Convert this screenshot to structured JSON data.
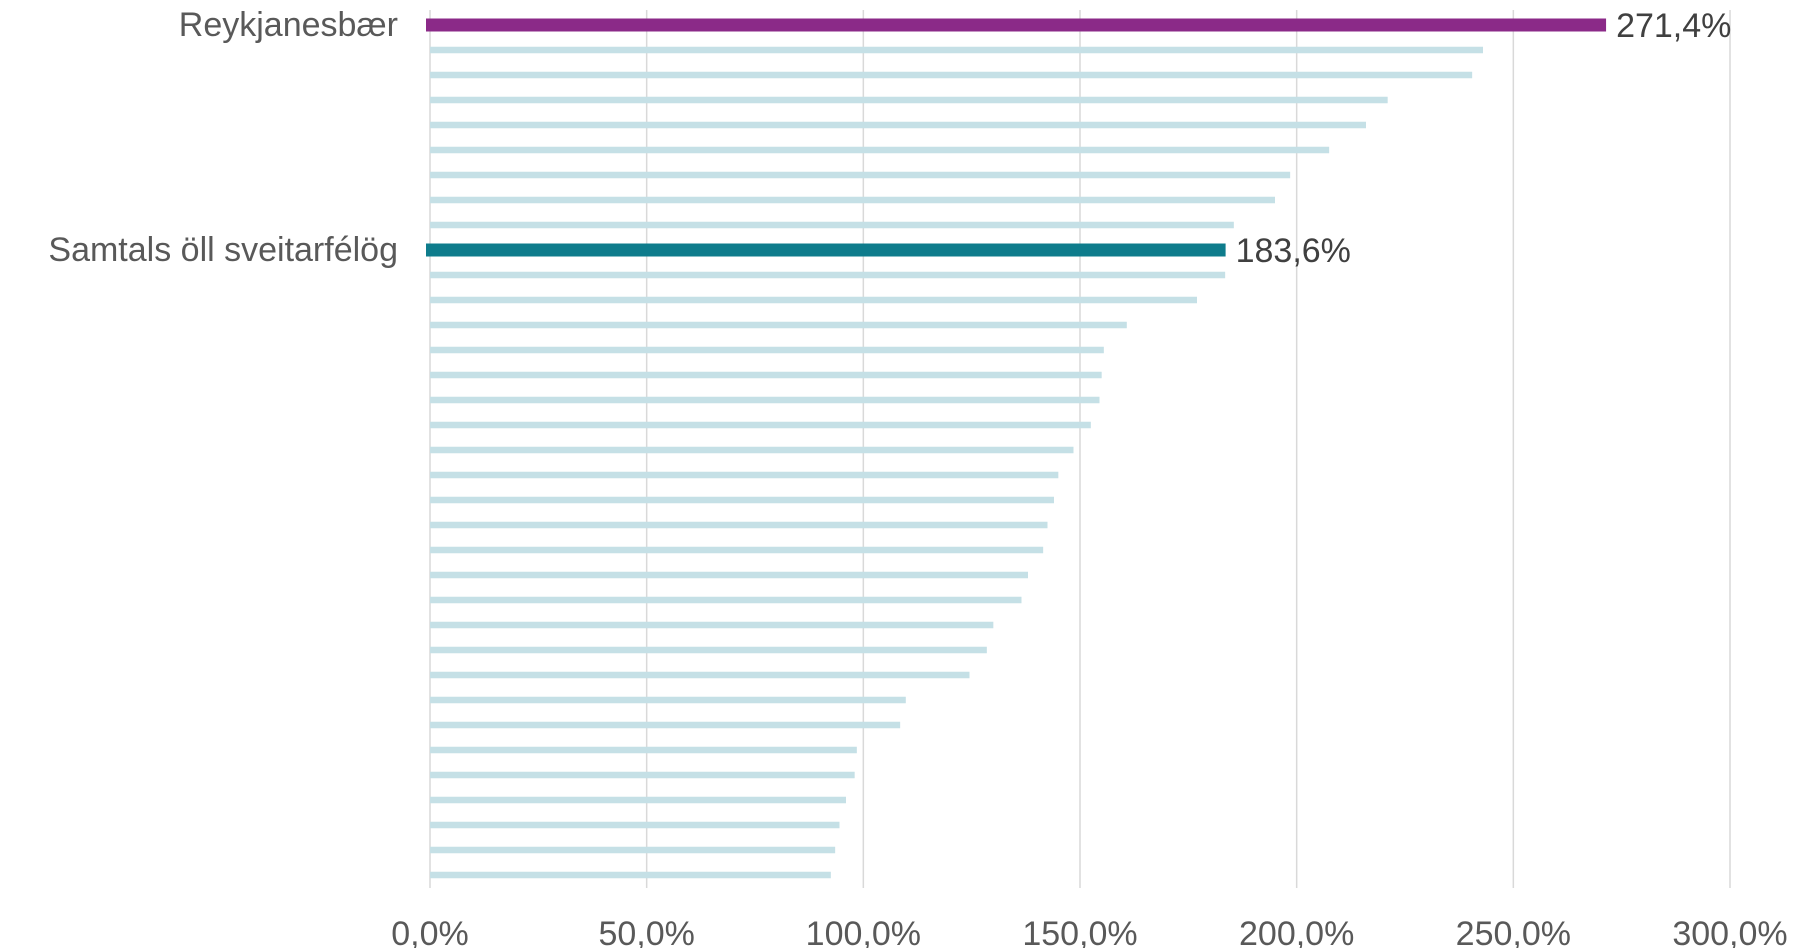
{
  "colors": {
    "default_bar": "#c5e0e6",
    "highlight_top": "#8b2a88",
    "highlight_total": "#0e7c8c",
    "grid": "#d9d9d9",
    "axis_text": "#595959"
  },
  "chart_data": {
    "type": "bar",
    "orientation": "horizontal",
    "title": "",
    "xlabel": "",
    "ylabel": "",
    "xlim": [
      0,
      300
    ],
    "grid": "vertical",
    "legend": "none",
    "x_ticks": [
      "0,0%",
      "50,0%",
      "100,0%",
      "150,0%",
      "200,0%",
      "250,0%",
      "300,0%"
    ],
    "x_tick_values": [
      0,
      50,
      100,
      150,
      200,
      250,
      300
    ],
    "bars": [
      {
        "label": "Reykjanesbær",
        "value": 271.4,
        "value_label": "271,4%",
        "highlight": "top"
      },
      {
        "label": "",
        "value": 243
      },
      {
        "label": "",
        "value": 240.5
      },
      {
        "label": "",
        "value": 221
      },
      {
        "label": "",
        "value": 216
      },
      {
        "label": "",
        "value": 207.5
      },
      {
        "label": "",
        "value": 198.5
      },
      {
        "label": "",
        "value": 195
      },
      {
        "label": "",
        "value": 185.5
      },
      {
        "label": "Samtals öll sveitarfélög",
        "value": 183.6,
        "value_label": "183,6%",
        "highlight": "total"
      },
      {
        "label": "",
        "value": 183.5
      },
      {
        "label": "",
        "value": 177
      },
      {
        "label": "",
        "value": 160.8
      },
      {
        "label": "",
        "value": 155.5
      },
      {
        "label": "",
        "value": 155
      },
      {
        "label": "",
        "value": 154.5
      },
      {
        "label": "",
        "value": 152.5
      },
      {
        "label": "",
        "value": 148.5
      },
      {
        "label": "",
        "value": 145
      },
      {
        "label": "",
        "value": 144
      },
      {
        "label": "",
        "value": 142.5
      },
      {
        "label": "",
        "value": 141.5
      },
      {
        "label": "",
        "value": 138
      },
      {
        "label": "",
        "value": 136.5
      },
      {
        "label": "",
        "value": 130
      },
      {
        "label": "",
        "value": 128.5
      },
      {
        "label": "",
        "value": 124.5
      },
      {
        "label": "",
        "value": 109.8
      },
      {
        "label": "",
        "value": 108.5
      },
      {
        "label": "",
        "value": 98.5
      },
      {
        "label": "",
        "value": 98
      },
      {
        "label": "",
        "value": 96
      },
      {
        "label": "",
        "value": 94.5
      },
      {
        "label": "",
        "value": 93.5
      },
      {
        "label": "",
        "value": 92.5
      }
    ]
  }
}
